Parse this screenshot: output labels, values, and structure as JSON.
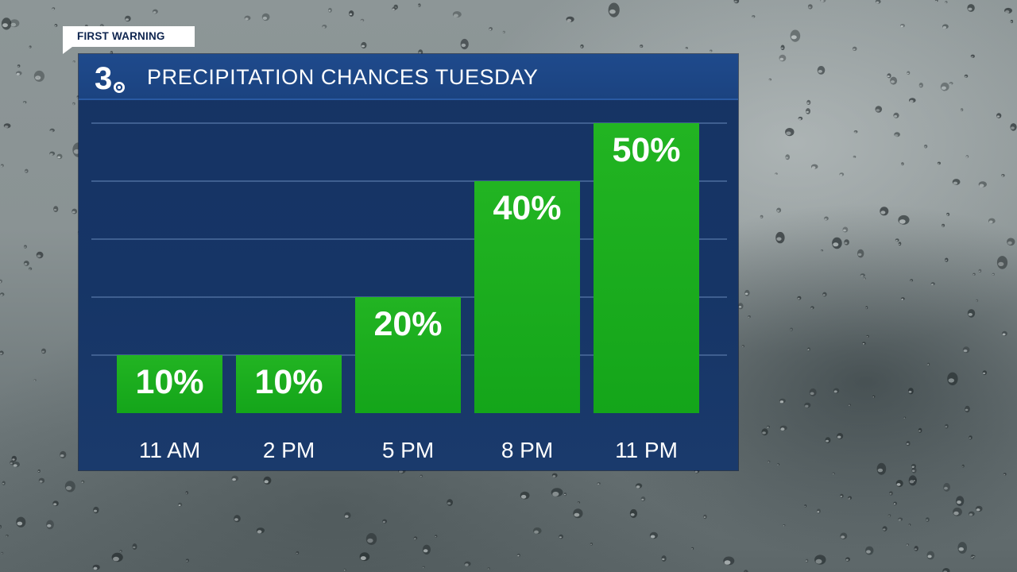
{
  "tag": {
    "label": "FIRST WARNING"
  },
  "logo": {
    "number": "3"
  },
  "chart_data": {
    "type": "bar",
    "title": "PRECIPITATION CHANCES TUESDAY",
    "categories": [
      "11 AM",
      "2 PM",
      "5 PM",
      "8 PM",
      "11 PM"
    ],
    "values": [
      10,
      10,
      20,
      40,
      50
    ],
    "value_labels": [
      "10%",
      "10%",
      "20%",
      "40%",
      "50%"
    ],
    "unit": "%",
    "ylim": [
      0,
      70
    ],
    "grid": true,
    "gridline_values": [
      10,
      20,
      30,
      40,
      50,
      60,
      70
    ]
  },
  "colors": {
    "bar": "#14a51a",
    "bar_top": "#22b422",
    "panel": "#163566",
    "header": "#1f4a8c",
    "grid": "#3f5f90"
  }
}
